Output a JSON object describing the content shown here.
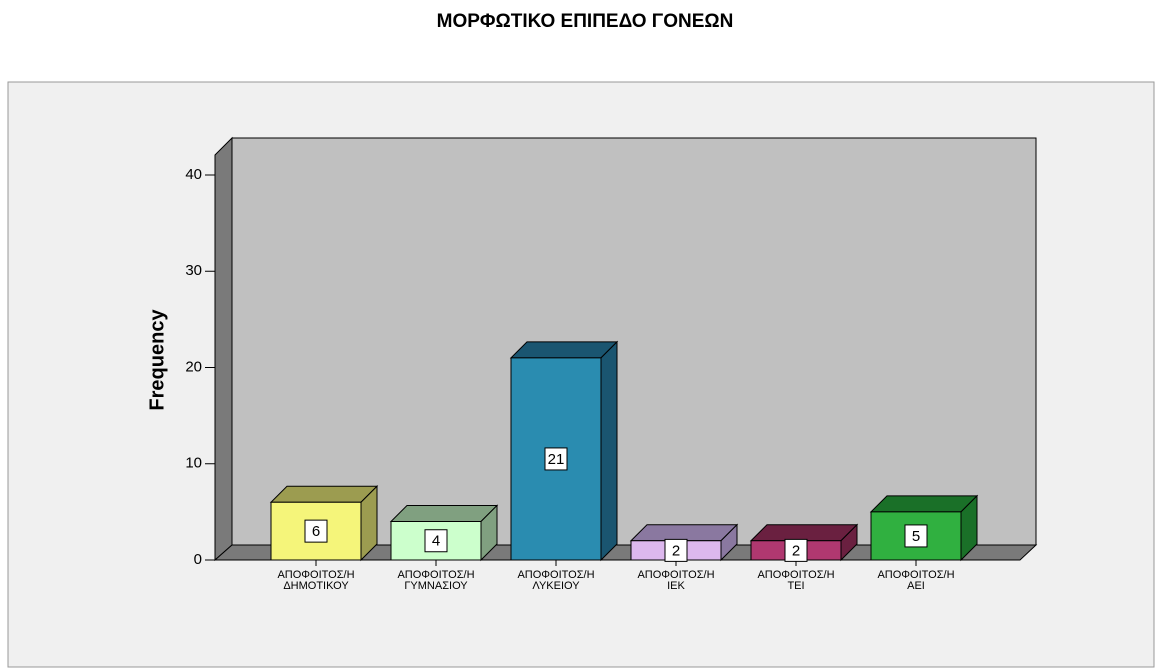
{
  "chart_data": {
    "type": "bar3d",
    "title": "ΜΟΡΦΩΤΙΚΟ ΕΠΙΠΕΔΟ ΓΟΝΕΩΝ",
    "y_label": "Frequency",
    "categories": [
      "ΑΠΟΦΟΙΤΟΣ/Η ΔΗΜΟΤΙΚΟΥ",
      "ΑΠΟΦΟΙΤΟΣ/Η ΓΥΜΝΑΣΙΟΥ",
      "ΑΠΟΦΟΙΤΟΣ/Η ΛΥΚΕΙΟΥ",
      "ΑΠΟΦΟΙΤΟΣ/Η ΙΕΚ",
      "ΑΠΟΦΟΙΤΟΣ/Η ΤΕΙ",
      "ΑΠΟΦΟΙΤΟΣ/Η ΑΕΙ"
    ],
    "values": [
      6,
      4,
      21,
      2,
      2,
      5
    ],
    "colors": [
      "#f5f57a",
      "#ccffcc",
      "#2a8cb0",
      "#ddb8ee",
      "#b03870",
      "#30b040"
    ],
    "side_colors": [
      "#9c9c50",
      "#80a080",
      "#1a5570",
      "#8a78a0",
      "#6a2040",
      "#1a7028"
    ],
    "ylim": [
      0,
      40
    ],
    "yticks": [
      0,
      10,
      20,
      30,
      40
    ]
  }
}
